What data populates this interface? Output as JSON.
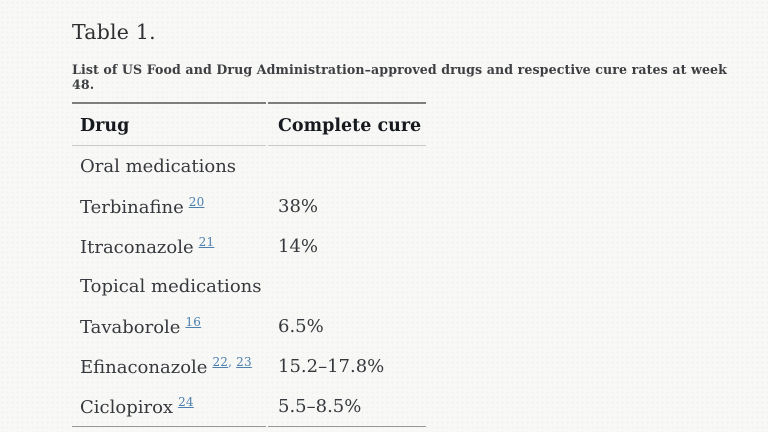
{
  "page": {
    "title": "Table 1.",
    "caption": "List of US Food and Drug Administration–approved drugs and respective cure rates at week 48."
  },
  "table": {
    "columns": [
      "Drug",
      "Complete cure"
    ],
    "rows": [
      {
        "type": "section",
        "drug": "Oral medications",
        "refs": [],
        "cure": ""
      },
      {
        "type": "drug",
        "drug": "Terbinafine",
        "refs": [
          "20"
        ],
        "cure": "38%"
      },
      {
        "type": "drug",
        "drug": "Itraconazole",
        "refs": [
          "21"
        ],
        "cure": "14%"
      },
      {
        "type": "section",
        "drug": "Topical medications",
        "refs": [],
        "cure": ""
      },
      {
        "type": "drug",
        "drug": "Tavaborole",
        "refs": [
          "16"
        ],
        "cure": "6.5%"
      },
      {
        "type": "drug",
        "drug": "Efinaconazole",
        "refs": [
          "22",
          "23"
        ],
        "cure": "15.2–17.8%"
      },
      {
        "type": "drug",
        "drug": "Ciclopirox",
        "refs": [
          "24"
        ],
        "cure": "5.5–8.5%"
      }
    ]
  },
  "colors": {
    "background": "#f8f8f6",
    "body_text": "#35383d",
    "header_text": "#16191e",
    "link_blue": "#4d80af",
    "border_dark": "#7e7e7c",
    "border_light": "#c9c9c6",
    "border_bottom": "#989894"
  }
}
